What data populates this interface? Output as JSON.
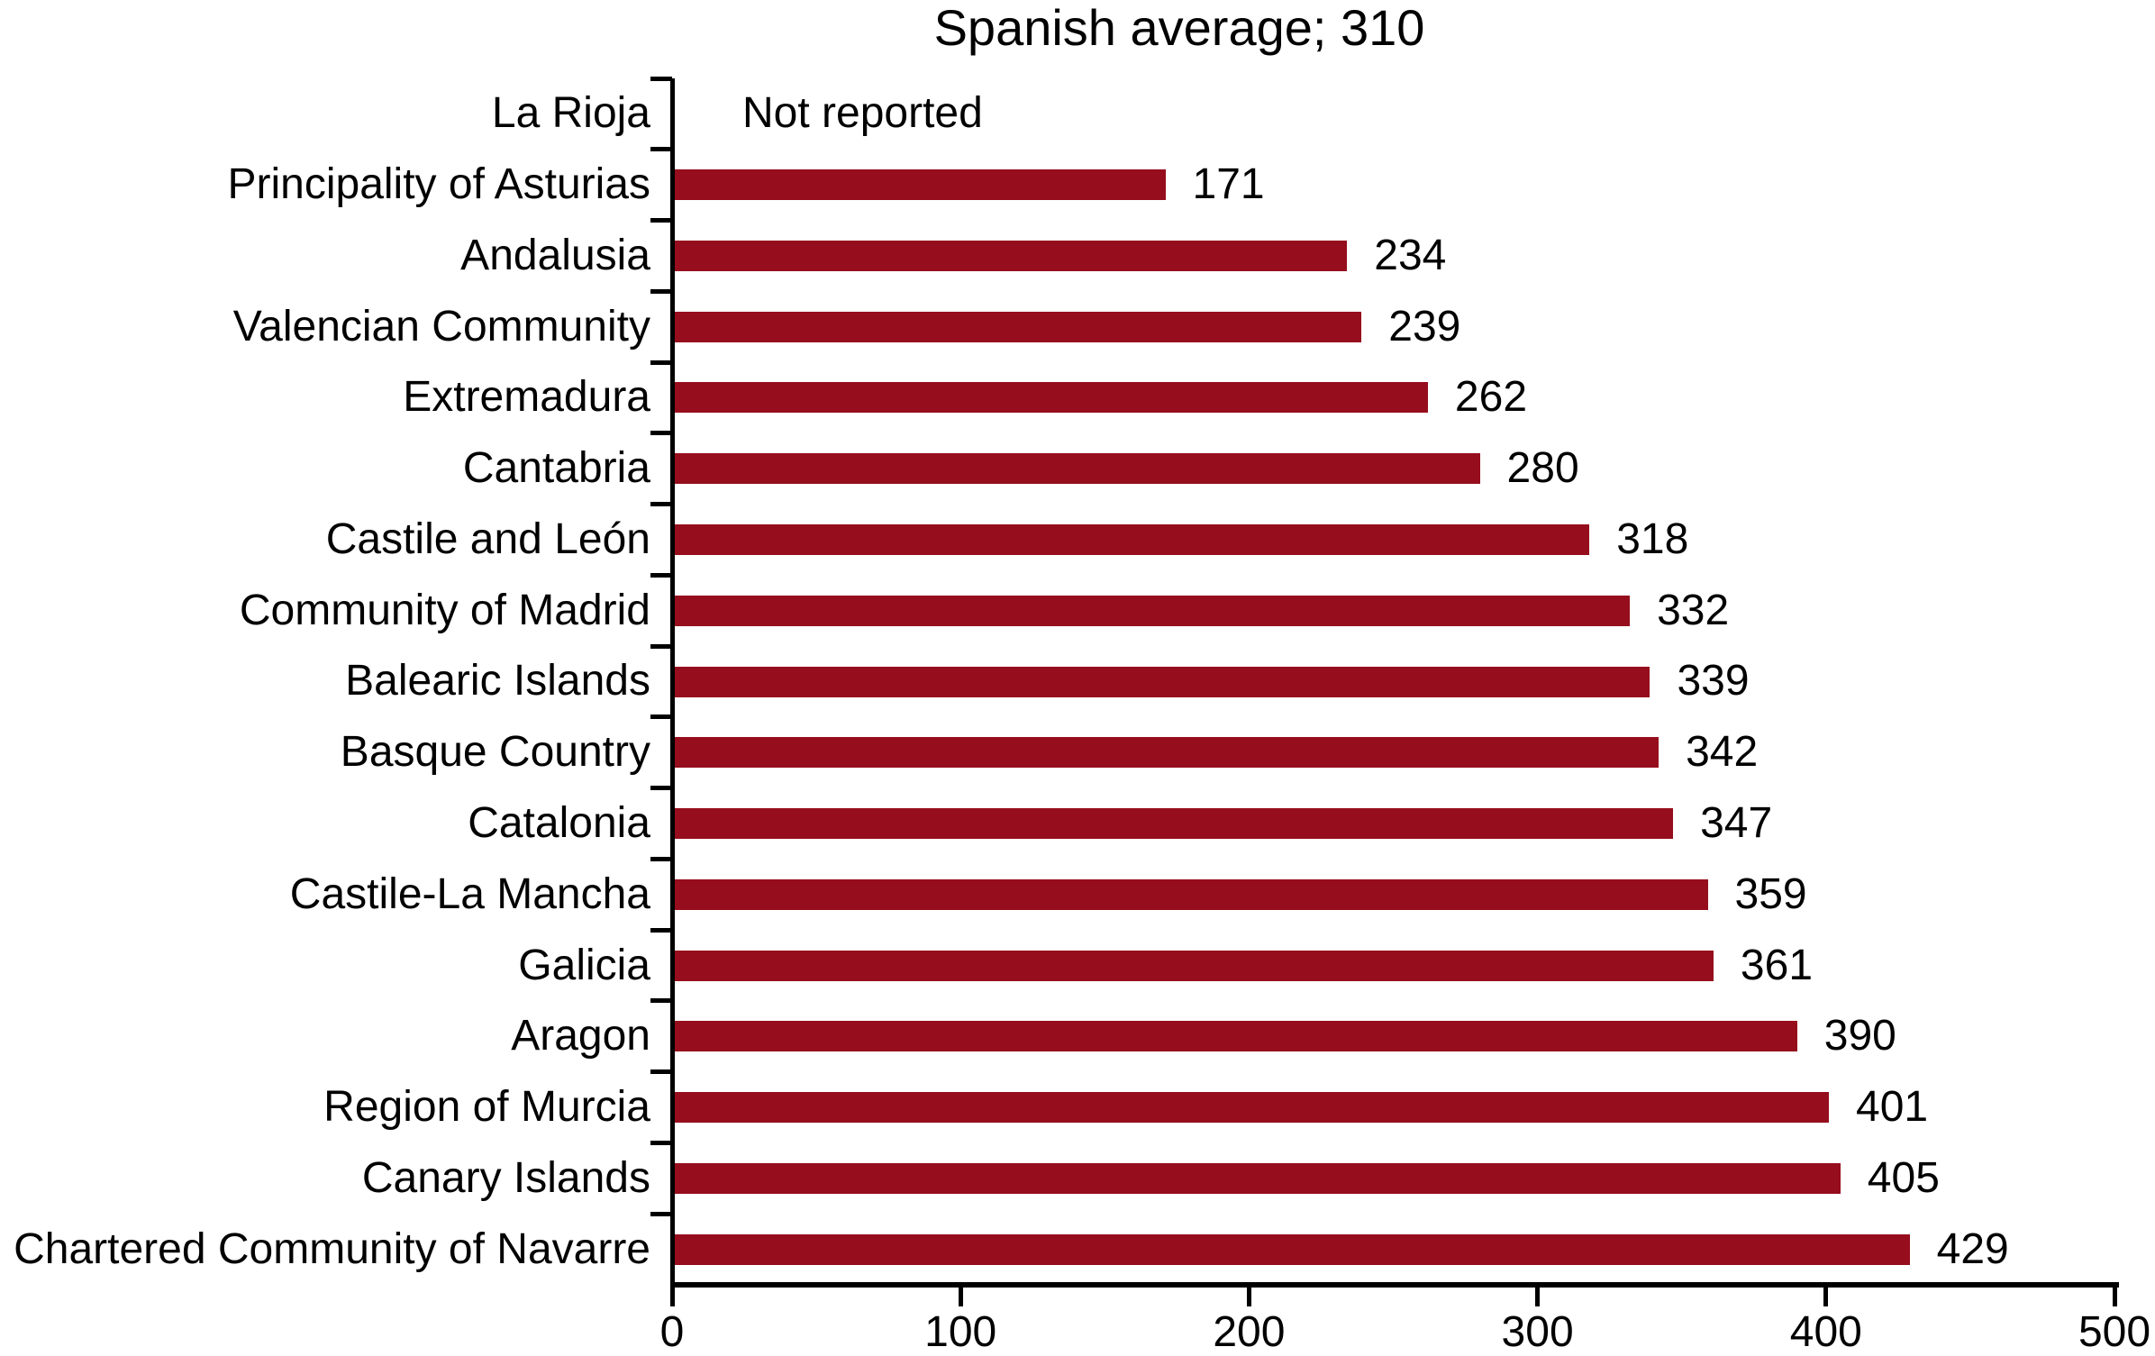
{
  "chart_data": {
    "type": "bar",
    "orientation": "horizontal",
    "title": "Spanish average; 310",
    "categories": [
      "La Rioja",
      "Principality of Asturias",
      "Andalusia",
      "Valencian Community",
      "Extremadura",
      "Cantabria",
      "Castile and León",
      "Community of Madrid",
      "Balearic Islands",
      "Basque Country",
      "Catalonia",
      "Castile-La Mancha",
      "Galicia",
      "Aragon",
      "Region of Murcia",
      "Canary Islands",
      "Chartered Community of Navarre"
    ],
    "values": [
      null,
      171,
      234,
      239,
      262,
      280,
      318,
      332,
      339,
      342,
      347,
      359,
      361,
      390,
      401,
      405,
      429
    ],
    "not_reported_text": "Not reported",
    "xlim": [
      0,
      500
    ],
    "xticks": [
      0,
      100,
      200,
      300,
      400,
      500
    ],
    "grid": false,
    "legend": false,
    "bar_color": "#960D1D",
    "axis_color": "#000000",
    "text_color": "#000000"
  }
}
